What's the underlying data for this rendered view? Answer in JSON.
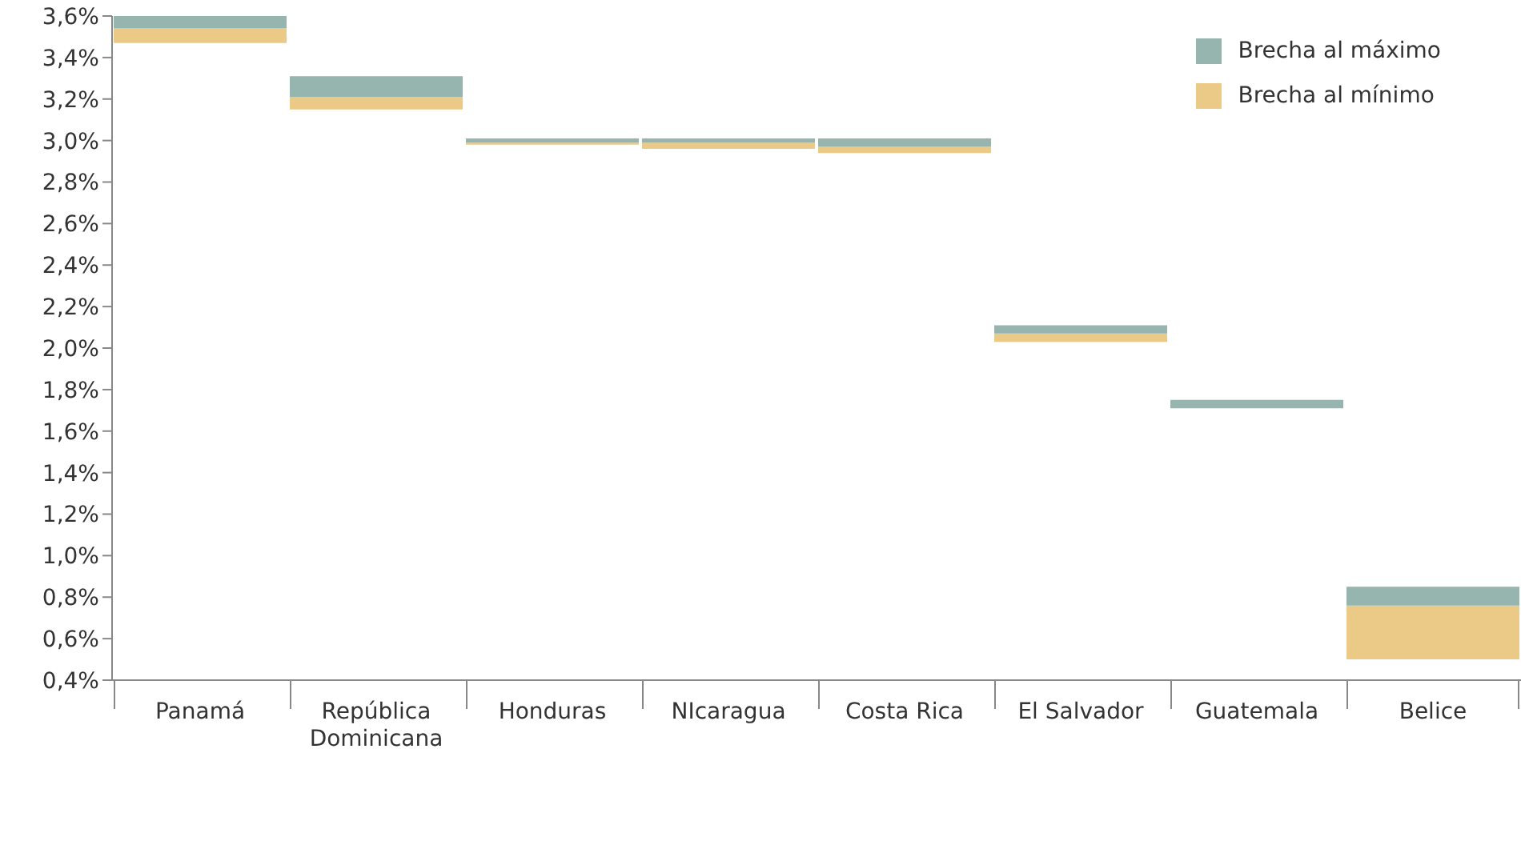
{
  "chart_data": {
    "type": "bar",
    "categories": [
      "Panamá",
      "República Dominicana",
      "Honduras",
      "NIcaragua",
      "Costa Rica",
      "El Salvador",
      "Guatemala",
      "Belice"
    ],
    "series": [
      {
        "name": "Brecha al mínimo",
        "color": "#ebc986",
        "base": [
          3.47,
          3.15,
          2.98,
          2.96,
          2.94,
          2.03,
          null,
          0.5
        ],
        "values": [
          0.07,
          0.06,
          0.01,
          0.03,
          0.03,
          0.04,
          null,
          0.26
        ]
      },
      {
        "name": "Brecha al máximo",
        "color": "#95b5ae",
        "base": [
          3.54,
          3.21,
          2.99,
          2.99,
          2.97,
          2.07,
          1.71,
          0.76
        ],
        "values": [
          0.06,
          0.1,
          0.02,
          0.02,
          0.04,
          0.04,
          0.04,
          0.09
        ]
      }
    ],
    "ylim": [
      0.4,
      3.6
    ],
    "yticks": [
      {
        "value": 0.4,
        "label": "0,4%"
      },
      {
        "value": 0.6,
        "label": "0,6%"
      },
      {
        "value": 0.8,
        "label": "0,8%"
      },
      {
        "value": 1.0,
        "label": "1,0%"
      },
      {
        "value": 1.2,
        "label": "1,2%"
      },
      {
        "value": 1.4,
        "label": "1,4%"
      },
      {
        "value": 1.6,
        "label": "1,6%"
      },
      {
        "value": 1.8,
        "label": "1,8%"
      },
      {
        "value": 2.0,
        "label": "2,0%"
      },
      {
        "value": 2.2,
        "label": "2,2%"
      },
      {
        "value": 2.4,
        "label": "2,4%"
      },
      {
        "value": 2.6,
        "label": "2,6%"
      },
      {
        "value": 2.8,
        "label": "2,8%"
      },
      {
        "value": 3.0,
        "label": "3,0%"
      },
      {
        "value": 3.2,
        "label": "3,2%"
      },
      {
        "value": 3.4,
        "label": "3,4%"
      },
      {
        "value": 3.6,
        "label": "3,6%"
      }
    ],
    "grid": false,
    "legend": "top right"
  }
}
